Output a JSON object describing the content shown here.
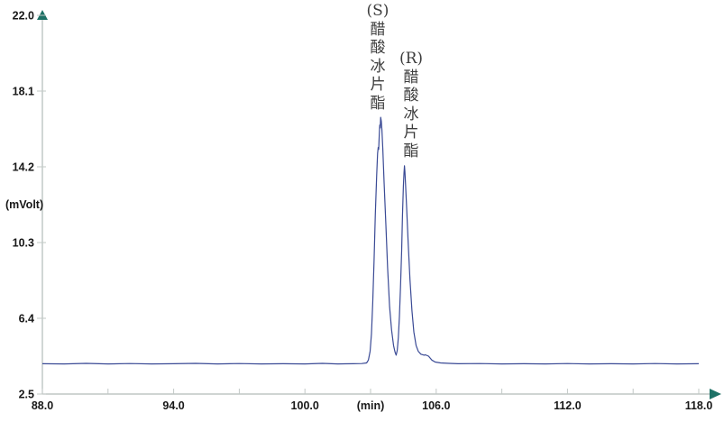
{
  "figure": {
    "kind": "chromatogram",
    "background": "#ffffff"
  },
  "axes": {
    "y": {
      "unit_label": "(mVolt)",
      "min": 2.5,
      "max": 22.0,
      "ticks": [
        2.5,
        6.4,
        10.3,
        14.2,
        18.1,
        22.0
      ],
      "tick_labels": [
        "2.5",
        "6.4",
        "10.3",
        "14.2",
        "18.1",
        "22.0"
      ]
    },
    "x": {
      "unit_label": "(min)",
      "unit_label_at": 103.0,
      "min": 88.0,
      "max": 118.0,
      "minor_ticks": [
        88,
        91,
        94,
        97,
        100,
        103,
        106,
        109,
        112,
        115,
        118
      ],
      "labeled_ticks": [
        88.0,
        94.0,
        100.0,
        106.0,
        112.0,
        118.0
      ],
      "tick_labels": [
        "88.0",
        "94.0",
        "100.0",
        "106.0",
        "112.0",
        "118.0"
      ]
    }
  },
  "peaks": [
    {
      "id": "S",
      "label_text": "(S)\n醋\n酸\n冰\n片\n酯",
      "compound": "醋酸冰片酯",
      "enantiomer": "(S)",
      "retention_time_min": 103.5,
      "apex_mvolt": 16.75
    },
    {
      "id": "R",
      "label_text": "(R)\n醋\n酸\n冰\n片\n酯",
      "compound": "醋酸冰片酯",
      "enantiomer": "(R)",
      "retention_time_min": 104.55,
      "apex_mvolt": 14.25
    }
  ],
  "chart_data": {
    "type": "line",
    "title": "",
    "xlabel": "(min)",
    "ylabel": "(mVolt)",
    "xlim": [
      88.0,
      118.0
    ],
    "ylim": [
      2.5,
      22.0
    ],
    "grid": false,
    "legend": false,
    "baseline_mvolt": 4.05,
    "series": [
      {
        "name": "chromatogram-trace",
        "points": [
          [
            88.0,
            4.06
          ],
          [
            89.0,
            4.05
          ],
          [
            90.0,
            4.08
          ],
          [
            91.0,
            4.05
          ],
          [
            92.0,
            4.07
          ],
          [
            93.0,
            4.05
          ],
          [
            94.0,
            4.06
          ],
          [
            95.0,
            4.08
          ],
          [
            96.0,
            4.05
          ],
          [
            97.0,
            4.07
          ],
          [
            98.0,
            4.05
          ],
          [
            99.0,
            4.06
          ],
          [
            100.0,
            4.05
          ],
          [
            100.8,
            4.08
          ],
          [
            101.5,
            4.05
          ],
          [
            102.2,
            4.06
          ],
          [
            102.6,
            4.07
          ],
          [
            102.82,
            4.1
          ],
          [
            102.9,
            4.25
          ],
          [
            102.98,
            4.7
          ],
          [
            103.04,
            5.6
          ],
          [
            103.1,
            7.2
          ],
          [
            103.16,
            9.4
          ],
          [
            103.22,
            11.8
          ],
          [
            103.28,
            13.8
          ],
          [
            103.32,
            14.9
          ],
          [
            103.35,
            15.2
          ],
          [
            103.37,
            15.1
          ],
          [
            103.4,
            15.9
          ],
          [
            103.42,
            16.35
          ],
          [
            103.44,
            16.2
          ],
          [
            103.46,
            16.75
          ],
          [
            103.49,
            16.55
          ],
          [
            103.52,
            16.1
          ],
          [
            103.56,
            15.1
          ],
          [
            103.62,
            13.4
          ],
          [
            103.7,
            11.2
          ],
          [
            103.78,
            9.0
          ],
          [
            103.87,
            7.0
          ],
          [
            103.96,
            5.8
          ],
          [
            104.05,
            5.0
          ],
          [
            104.12,
            4.65
          ],
          [
            104.17,
            4.5
          ],
          [
            104.22,
            4.75
          ],
          [
            104.27,
            5.4
          ],
          [
            104.32,
            6.5
          ],
          [
            104.37,
            8.0
          ],
          [
            104.42,
            9.9
          ],
          [
            104.46,
            11.7
          ],
          [
            104.5,
            13.2
          ],
          [
            104.53,
            13.9
          ],
          [
            104.55,
            14.25
          ],
          [
            104.57,
            13.95
          ],
          [
            104.6,
            13.3
          ],
          [
            104.65,
            12.1
          ],
          [
            104.72,
            10.3
          ],
          [
            104.8,
            8.4
          ],
          [
            104.89,
            6.8
          ],
          [
            104.98,
            5.7
          ],
          [
            105.08,
            5.0
          ],
          [
            105.18,
            4.7
          ],
          [
            105.3,
            4.55
          ],
          [
            105.45,
            4.5
          ],
          [
            105.5,
            4.52
          ],
          [
            105.65,
            4.45
          ],
          [
            105.8,
            4.25
          ],
          [
            105.95,
            4.15
          ],
          [
            106.2,
            4.1
          ],
          [
            106.6,
            4.08
          ],
          [
            107.0,
            4.06
          ],
          [
            108.0,
            4.07
          ],
          [
            109.0,
            4.05
          ],
          [
            110.0,
            4.06
          ],
          [
            111.0,
            4.05
          ],
          [
            112.0,
            4.07
          ],
          [
            113.0,
            4.05
          ],
          [
            114.0,
            4.06
          ],
          [
            115.0,
            4.05
          ],
          [
            116.0,
            4.07
          ],
          [
            117.0,
            4.05
          ],
          [
            118.0,
            4.06
          ]
        ]
      }
    ]
  },
  "colors": {
    "trace": "#3a4a95",
    "axis_line": "#b2bcb9",
    "tick": "#c2c8c6",
    "arrow": "#1d7166",
    "axis_label": "#181818",
    "peak_label": "#3d3d3d"
  }
}
